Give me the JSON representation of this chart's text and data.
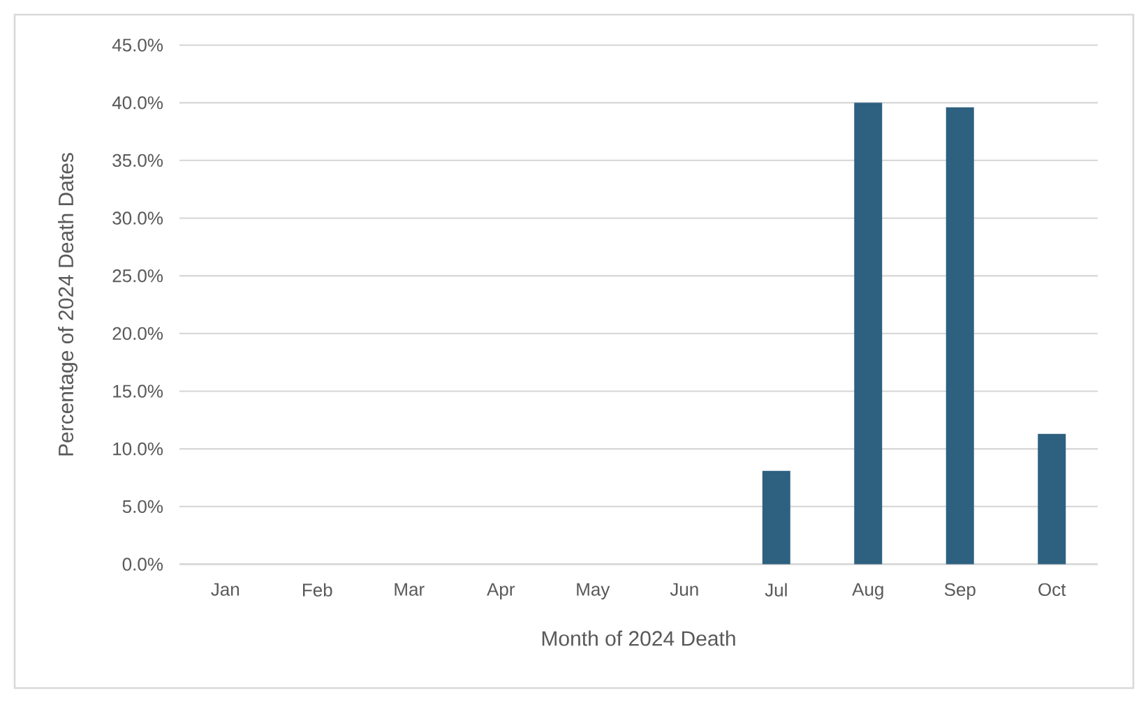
{
  "chart_data": {
    "type": "bar",
    "xlabel": "Month of 2024 Death",
    "ylabel": "Percentage of 2024 Death Dates",
    "categories": [
      "Jan",
      "Feb",
      "Mar",
      "Apr",
      "May",
      "Jun",
      "Jul",
      "Aug",
      "Sep",
      "Oct"
    ],
    "values": [
      0,
      0,
      0,
      0,
      0,
      0,
      8.1,
      40.0,
      39.6,
      11.3
    ],
    "color": "#2e6080",
    "ylim": [
      0,
      45
    ],
    "yticks": [
      {
        "value": 0,
        "label": "0.0%"
      },
      {
        "value": 5,
        "label": "5.0%"
      },
      {
        "value": 10,
        "label": "10.0%"
      },
      {
        "value": 15,
        "label": "15.0%"
      },
      {
        "value": 20,
        "label": "20.0%"
      },
      {
        "value": 25,
        "label": "25.0%"
      },
      {
        "value": 30,
        "label": "30.0%"
      },
      {
        "value": 35,
        "label": "35.0%"
      },
      {
        "value": 40,
        "label": "40.0%"
      },
      {
        "value": 45,
        "label": "45.0%"
      }
    ],
    "grid": "y"
  }
}
